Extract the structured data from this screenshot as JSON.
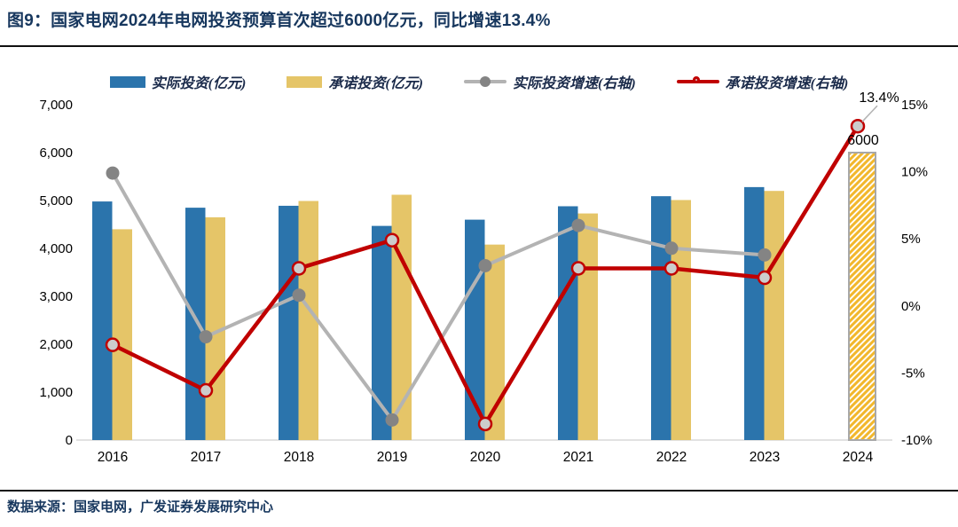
{
  "header": {
    "title": "图9：国家电网2024年电网投资预算首次超过6000亿元，同比增速13.4%"
  },
  "footer": {
    "source": "数据来源：国家电网，广发证券发展研究中心"
  },
  "colors": {
    "title_navy": "#17375E",
    "actual_bar_blue": "#2B74AC",
    "promised_bar_yellow": "#E5C568",
    "hatch_gold": "#F2B72B",
    "hatch_border_gray": "#A8A8A8",
    "actual_line_gray": "#B3B3B3",
    "actual_marker_gray": "#848484",
    "promised_line_red": "#C00000",
    "promised_marker_fill": "#CCCCCC",
    "axis_line_gray": "#D9D9D9",
    "tick_text": "#000000"
  },
  "chart_data": {
    "type": "bar+line combo",
    "categories": [
      "2016",
      "2017",
      "2018",
      "2019",
      "2020",
      "2021",
      "2022",
      "2023",
      "2024"
    ],
    "series": [
      {
        "name": "实际投资(亿元)",
        "type": "bar",
        "axis": "left",
        "values": [
          4980,
          4850,
          4890,
          4470,
          4600,
          4880,
          5090,
          5280,
          null
        ]
      },
      {
        "name": "承诺投资(亿元)",
        "type": "bar",
        "axis": "left",
        "values": [
          4400,
          4650,
          4990,
          5120,
          4080,
          4730,
          5010,
          5200,
          6000
        ],
        "note": "2024 bar drawn as gold diagonal-hatched outline bar"
      },
      {
        "name": "实际投资增速(右轴)",
        "type": "line",
        "axis": "right",
        "values": [
          9.9,
          -2.3,
          0.8,
          -8.5,
          3.0,
          6.0,
          4.3,
          3.8,
          null
        ]
      },
      {
        "name": "承诺投资增速(右轴)",
        "type": "line",
        "axis": "right",
        "values": [
          -2.9,
          -6.3,
          2.8,
          4.9,
          -8.8,
          2.8,
          2.8,
          2.1,
          13.4
        ]
      }
    ],
    "left_axis": {
      "min": 0,
      "max": 7000,
      "ticks": [
        "7,000",
        "6,000",
        "5,000",
        "4,000",
        "3,000",
        "2,000",
        "1,000",
        "0"
      ]
    },
    "right_axis": {
      "min": -10,
      "max": 15,
      "ticks": [
        "15%",
        "10%",
        "5%",
        "0%",
        "-5%",
        "-10%"
      ]
    },
    "annotations": {
      "bar_label_2024": "6000",
      "growth_label_2024": "13.4%"
    },
    "legend_position": "top-center",
    "grid": false
  }
}
